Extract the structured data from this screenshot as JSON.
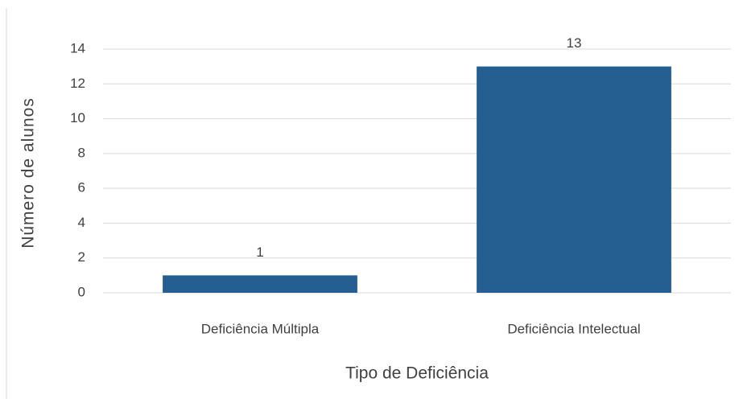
{
  "chart_data": {
    "type": "bar",
    "xlabel": "Tipo de Deficiência",
    "ylabel": "Número de alunos",
    "categories": [
      "Deficiência Múltipla",
      "Deficiência Intelectual"
    ],
    "values": [
      1,
      13
    ],
    "color": "#255e91",
    "ylim": [
      0,
      14
    ],
    "yticks": [
      0,
      2,
      4,
      6,
      8,
      10,
      12,
      14
    ],
    "grid": true
  }
}
